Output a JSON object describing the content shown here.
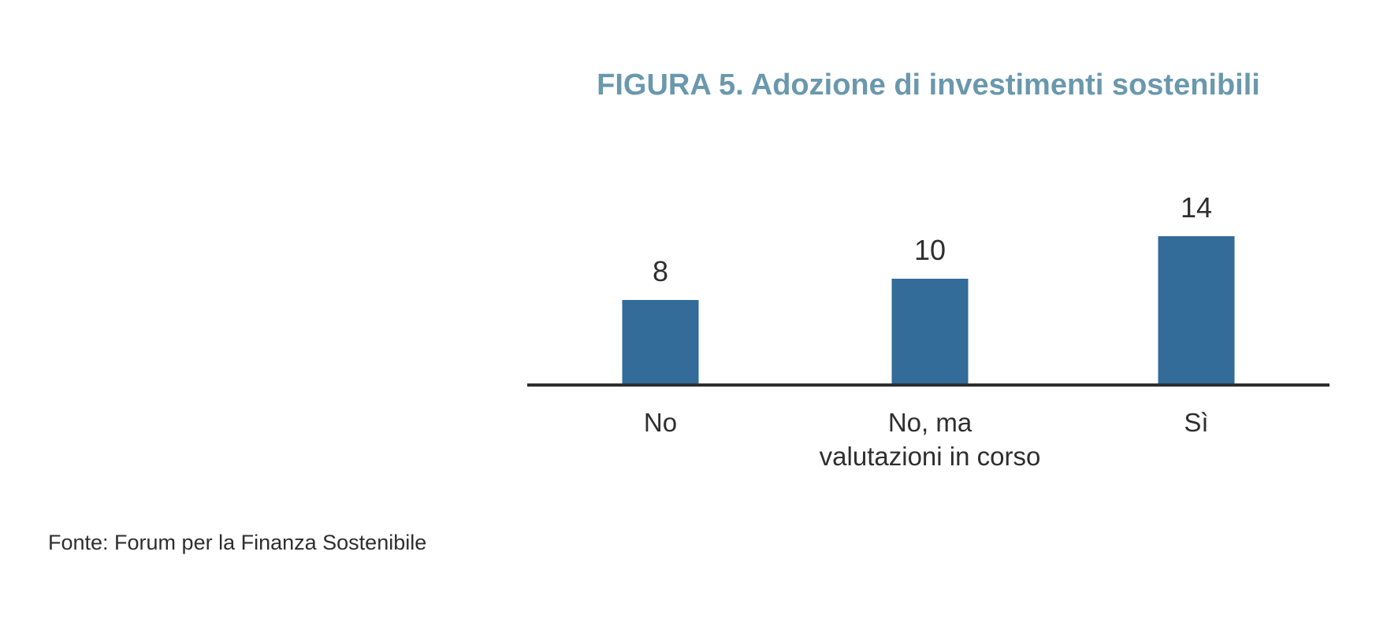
{
  "chart_data": {
    "type": "bar",
    "title": "FIGURA 5. Adozione di investimenti sostenibili",
    "categories": [
      [
        "No"
      ],
      [
        "No, ma",
        "valutazioni in corso"
      ],
      [
        "Sì"
      ]
    ],
    "values": [
      8,
      10,
      14
    ],
    "xlabel": "",
    "ylabel": "",
    "ylim": [
      0,
      14
    ],
    "grid": false,
    "legend": "none",
    "data_labels": true,
    "bar_color": "#336b99",
    "axis_color": "#2e2e2e",
    "title_color": "#6a98ad"
  },
  "source": "Fonte: Forum per la Finanza Sostenibile"
}
